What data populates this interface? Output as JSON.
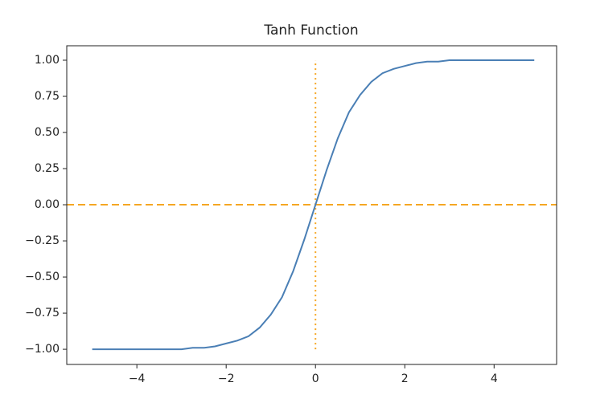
{
  "chart_data": {
    "type": "line",
    "title": "Tanh Function",
    "x": [
      -5,
      -4.75,
      -4.5,
      -4.25,
      -4,
      -3.75,
      -3.5,
      -3.25,
      -3,
      -2.75,
      -2.5,
      -2.25,
      -2,
      -1.75,
      -1.5,
      -1.25,
      -1,
      -0.75,
      -0.5,
      -0.25,
      0,
      0.25,
      0.5,
      0.75,
      1,
      1.25,
      1.5,
      1.75,
      2,
      2.25,
      2.5,
      2.75,
      3,
      3.25,
      3.5,
      3.75,
      4,
      4.25,
      4.5,
      4.75,
      4.9
    ],
    "values": [
      -1.0,
      -1.0,
      -1.0,
      -1.0,
      -1.0,
      -1.0,
      -1.0,
      -1.0,
      -1.0,
      -0.99,
      -0.99,
      -0.98,
      -0.96,
      -0.94,
      -0.91,
      -0.85,
      -0.76,
      -0.64,
      -0.46,
      -0.24,
      0,
      0.24,
      0.46,
      0.64,
      0.76,
      0.85,
      0.91,
      0.94,
      0.96,
      0.98,
      0.99,
      0.99,
      1.0,
      1.0,
      1.0,
      1.0,
      1.0,
      1.0,
      1.0,
      1.0,
      1.0
    ],
    "color": "#4a7fb5",
    "xlim": [
      -5.57,
      5.4
    ],
    "ylim": [
      -1.105,
      1.1
    ],
    "xticks": [
      {
        "value": -4,
        "label": "−4"
      },
      {
        "value": -2,
        "label": "−2"
      },
      0,
      2,
      4
    ],
    "yticks": [
      {
        "value": -1,
        "label": "−1.00"
      },
      {
        "value": -0.75,
        "label": "−0.75"
      },
      {
        "value": -0.5,
        "label": "−0.50"
      },
      {
        "value": -0.25,
        "label": "−0.25"
      },
      {
        "value": 0,
        "label": "0.00"
      },
      {
        "value": 0.25,
        "label": "0.25"
      },
      {
        "value": 0.5,
        "label": "0.50"
      },
      {
        "value": 0.75,
        "label": "0.75"
      },
      {
        "value": 1,
        "label": "1.00"
      }
    ],
    "hlines": [
      {
        "y": 0,
        "color": "#f5a623",
        "style": "dashed"
      }
    ],
    "vlines": [
      {
        "x": 0,
        "ymin": -1,
        "ymax": 1,
        "color": "#f5a623",
        "style": "dotted"
      }
    ],
    "grid": false
  }
}
